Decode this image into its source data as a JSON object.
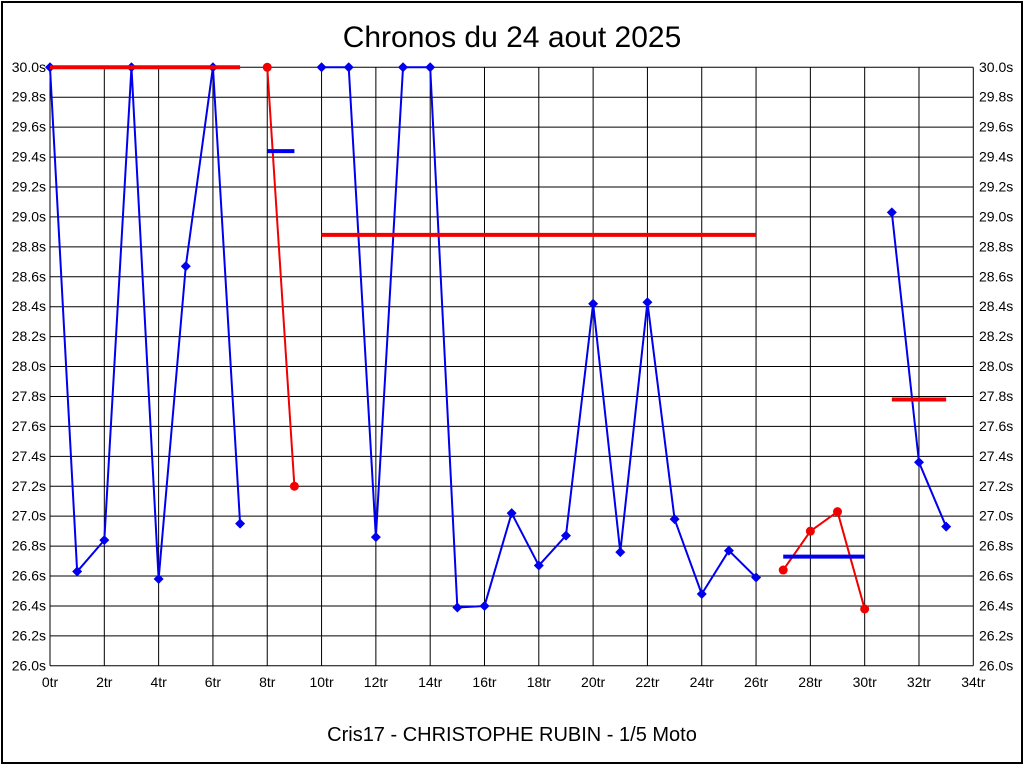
{
  "title": "Chronos du 24 aout 2025",
  "subtitle": "Cris17 - CHRISTOPHE RUBIN - 1/5 Moto",
  "colors": {
    "blue": "#0000ee",
    "red": "#f20000",
    "grid": "#000000",
    "text": "#000000",
    "background": "#ffffff"
  },
  "chart_data": {
    "type": "line",
    "title": "Chronos du 24 aout 2025",
    "subtitle": "Cris17 - CHRISTOPHE RUBIN - 1/5 Moto",
    "x_unit": "tr",
    "y_unit": "s",
    "xlim": [
      0,
      34
    ],
    "ylim": [
      26.0,
      30.0
    ],
    "x_grid_step": 2,
    "y_grid_step": 0.2,
    "grid": true,
    "legend": "none",
    "x_ticks": [
      "0tr",
      "2tr",
      "4tr",
      "6tr",
      "8tr",
      "10tr",
      "12tr",
      "14tr",
      "16tr",
      "18tr",
      "20tr",
      "22tr",
      "24tr",
      "26tr",
      "28tr",
      "30tr",
      "32tr",
      "34tr"
    ],
    "y_ticks": [
      "30.0s",
      "29.8s",
      "29.6s",
      "29.4s",
      "29.2s",
      "29.0s",
      "28.8s",
      "28.6s",
      "28.4s",
      "28.2s",
      "28.0s",
      "27.8s",
      "27.6s",
      "27.4s",
      "27.2s",
      "27.0s",
      "26.8s",
      "26.6s",
      "26.4s",
      "26.2s",
      "26.0s"
    ],
    "series": [
      {
        "name": "run-1",
        "color": "blue",
        "marker": "diamond",
        "x": [
          0,
          1,
          2,
          3,
          4,
          5,
          6,
          7
        ],
        "y": [
          30.0,
          26.63,
          26.84,
          30.0,
          26.58,
          28.67,
          30.0,
          26.95
        ]
      },
      {
        "name": "run-2",
        "color": "red",
        "marker": "circle",
        "x": [
          8,
          9
        ],
        "y": [
          30.0,
          27.2
        ]
      },
      {
        "name": "run-3",
        "color": "blue",
        "marker": "diamond",
        "x": [
          10,
          11,
          12,
          13,
          14,
          15,
          16,
          17,
          18,
          19,
          20,
          21,
          22,
          23,
          24,
          25,
          26
        ],
        "y": [
          30.0,
          30.0,
          26.86,
          30.0,
          30.0,
          26.39,
          26.4,
          27.02,
          26.67,
          26.87,
          28.42,
          26.76,
          28.43,
          26.98,
          26.48,
          26.77,
          26.59
        ]
      },
      {
        "name": "run-4",
        "color": "red",
        "marker": "circle",
        "x": [
          27,
          28,
          29,
          30
        ],
        "y": [
          26.64,
          26.9,
          27.03,
          26.38
        ]
      },
      {
        "name": "run-5",
        "color": "blue",
        "marker": "diamond",
        "x": [
          31,
          32,
          33
        ],
        "y": [
          29.03,
          27.36,
          26.93
        ]
      }
    ],
    "reference_lines": [
      {
        "name": "avg-run-1",
        "color": "red",
        "y": 30.0,
        "x_start": 0,
        "x_end": 7
      },
      {
        "name": "avg-run-2",
        "color": "blue",
        "y": 29.44,
        "x_start": 8,
        "x_end": 9
      },
      {
        "name": "avg-run-3",
        "color": "red",
        "y": 28.88,
        "x_start": 10,
        "x_end": 26
      },
      {
        "name": "avg-run-4",
        "color": "blue",
        "y": 26.73,
        "x_start": 27,
        "x_end": 30
      },
      {
        "name": "avg-run-5",
        "color": "red",
        "y": 27.78,
        "x_start": 31,
        "x_end": 33
      }
    ]
  }
}
